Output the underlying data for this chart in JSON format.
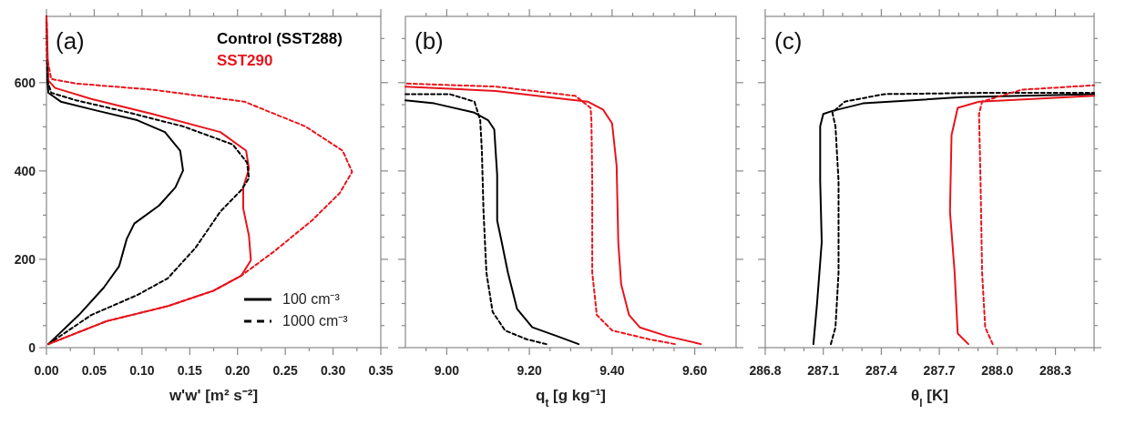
{
  "chart_data": [
    {
      "type": "line",
      "title": "(a)",
      "xlabel": "w'w' [m² s⁻²]",
      "xlim": [
        0,
        0.35
      ],
      "ylim": [
        0,
        750
      ],
      "xticks": [
        {
          "value": 0,
          "label": "0.00"
        },
        {
          "value": 0.025,
          "label": null
        },
        {
          "value": 0.05,
          "label": "0.05"
        },
        {
          "value": 0.075,
          "label": null
        },
        {
          "value": 0.1,
          "label": "0.10"
        },
        {
          "value": 0.125,
          "label": null
        },
        {
          "value": 0.15,
          "label": "0.15"
        },
        {
          "value": 0.175,
          "label": null
        },
        {
          "value": 0.2,
          "label": "0.20"
        },
        {
          "value": 0.225,
          "label": null
        },
        {
          "value": 0.25,
          "label": "0.25"
        },
        {
          "value": 0.275,
          "label": null
        },
        {
          "value": 0.3,
          "label": "0.30"
        },
        {
          "value": 0.325,
          "label": null
        },
        {
          "value": 0.35,
          "label": "0.35"
        }
      ],
      "yticks": [
        0,
        {
          "value": 50,
          "label": null
        },
        {
          "value": 100,
          "label": null
        },
        {
          "value": 150,
          "label": null
        },
        200,
        {
          "value": 250,
          "label": null
        },
        {
          "value": 300,
          "label": null
        },
        {
          "value": 350,
          "label": null
        },
        400,
        {
          "value": 450,
          "label": null
        },
        {
          "value": 500,
          "label": null
        },
        {
          "value": 550,
          "label": null
        },
        600,
        {
          "value": 650,
          "label": null
        },
        {
          "value": 700,
          "label": null
        }
      ],
      "legend": "top right",
      "annotations": [
        "100 cm⁻³",
        "1000 cm⁻³"
      ],
      "series": [
        {
          "name": "Control (SST288)",
          "color": "#000000",
          "line_style": "solid",
          "x": [
            0.002,
            0.034,
            0.06,
            0.076,
            0.084,
            0.092,
            0.118,
            0.135,
            0.143,
            0.14,
            0.124,
            0.095,
            0.054,
            0.015,
            0.002,
            0.001,
            0.001
          ],
          "values": [
            8,
            74,
            136,
            184,
            246,
            281,
            322,
            363,
            401,
            446,
            488,
            515,
            536,
            557,
            577,
            605,
            653
          ]
        },
        {
          "name": "SST290",
          "color": "#e8141c",
          "line_style": "solid",
          "x": [
            0.002,
            0.063,
            0.127,
            0.175,
            0.204,
            0.214,
            0.212,
            0.206,
            0.206,
            0.212,
            0.209,
            0.182,
            0.111,
            0.047,
            0.009,
            0.002,
            0
          ],
          "values": [
            8,
            60,
            94,
            129,
            163,
            198,
            253,
            315,
            363,
            405,
            446,
            488,
            529,
            563,
            588,
            605,
            750
          ]
        },
        {
          "color": "#000000",
          "line_style": "dashed",
          "x": [
            0.002,
            0.047,
            0.095,
            0.127,
            0.156,
            0.182,
            0.204,
            0.212,
            0.21,
            0.195,
            0.143,
            0.079,
            0.031,
            0.005,
            0.001,
            0
          ],
          "values": [
            8,
            74,
            119,
            157,
            226,
            308,
            357,
            384,
            419,
            460,
            501,
            536,
            560,
            577,
            605,
            750
          ]
        },
        {
          "color": "#e8141c",
          "line_style": "dashed",
          "x": [
            0.002,
            0.063,
            0.127,
            0.175,
            0.204,
            0.239,
            0.278,
            0.307,
            0.32,
            0.31,
            0.271,
            0.207,
            0.111,
            0.031,
            0.005,
            0.001,
            0
          ],
          "values": [
            8,
            60,
            94,
            129,
            163,
            219,
            288,
            350,
            398,
            446,
            501,
            557,
            584,
            598,
            608,
            653,
            750
          ]
        }
      ]
    },
    {
      "type": "line",
      "title": "(b)",
      "xlabel": "q$_{t}$ [g kg⁻¹]",
      "xlim": [
        8.9,
        9.7
      ],
      "ylim": [
        0,
        750
      ],
      "tick_labels": "x",
      "xticks": [
        {
          "value": 8.95,
          "label": null
        },
        {
          "value": 9.0,
          "label": "9.00"
        },
        {
          "value": 9.05,
          "label": null
        },
        {
          "value": 9.1,
          "label": null
        },
        {
          "value": 9.15,
          "label": null
        },
        {
          "value": 9.2,
          "label": "9.20"
        },
        {
          "value": 9.25,
          "label": null
        },
        {
          "value": 9.3,
          "label": null
        },
        {
          "value": 9.35,
          "label": null
        },
        {
          "value": 9.4,
          "label": "9.40"
        },
        {
          "value": 9.45,
          "label": null
        },
        {
          "value": 9.5,
          "label": null
        },
        {
          "value": 9.55,
          "label": null
        },
        {
          "value": 9.6,
          "label": "9.60"
        },
        {
          "value": 9.65,
          "label": null
        }
      ],
      "yticks": [
        0,
        {
          "value": 50,
          "label": null
        },
        {
          "value": 100,
          "label": null
        },
        {
          "value": 150,
          "label": null
        },
        200,
        {
          "value": 250,
          "label": null
        },
        {
          "value": 300,
          "label": null
        },
        {
          "value": 350,
          "label": null
        },
        400,
        {
          "value": 450,
          "label": null
        },
        {
          "value": 500,
          "label": null
        },
        {
          "value": 550,
          "label": null
        },
        600,
        {
          "value": 650,
          "label": null
        },
        {
          "value": 700,
          "label": null
        }
      ],
      "series": [
        {
          "color": "#000000",
          "line_style": "solid",
          "x": [
            9.319,
            9.267,
            9.207,
            9.17,
            9.148,
            9.133,
            9.122,
            9.122,
            9.115,
            9.1,
            9.067,
            8.97,
            8.9
          ],
          "values": [
            8,
            26,
            46,
            88,
            170,
            239,
            288,
            391,
            494,
            515,
            532,
            553,
            560
          ]
        },
        {
          "color": "#e8141c",
          "line_style": "solid",
          "x": [
            9.615,
            9.533,
            9.467,
            9.441,
            9.422,
            9.415,
            9.411,
            9.4,
            9.378,
            9.341,
            9.119,
            8.9
          ],
          "values": [
            8,
            26,
            46,
            74,
            143,
            239,
            412,
            508,
            539,
            557,
            581,
            591
          ]
        },
        {
          "color": "#000000",
          "line_style": "dashed",
          "x": [
            9.241,
            9.193,
            9.141,
            9.111,
            9.096,
            9.089,
            9.085,
            9.081,
            9.067,
            9.007,
            8.9
          ],
          "values": [
            8,
            19,
            39,
            81,
            170,
            308,
            446,
            515,
            557,
            574,
            574
          ]
        },
        {
          "color": "#e8141c",
          "line_style": "dashed",
          "x": [
            9.552,
            9.489,
            9.4,
            9.363,
            9.352,
            9.352,
            9.35,
            9.348,
            9.311,
            9.119,
            8.9
          ],
          "values": [
            8,
            19,
            39,
            74,
            170,
            377,
            515,
            543,
            570,
            591,
            598
          ]
        }
      ]
    },
    {
      "type": "line",
      "title": "(c)",
      "xlabel": "θ$_{l}$ [K]",
      "xlim": [
        286.8,
        288.5
      ],
      "ylim": [
        0,
        750
      ],
      "tick_labels": "x",
      "xticks": [
        286.8,
        {
          "value": 286.9,
          "label": null
        },
        {
          "value": 287.0,
          "label": null
        },
        287.1,
        {
          "value": 287.2,
          "label": null
        },
        {
          "value": 287.3,
          "label": null
        },
        287.4,
        {
          "value": 287.5,
          "label": null
        },
        {
          "value": 287.6,
          "label": null
        },
        287.7,
        {
          "value": 287.8,
          "label": null
        },
        {
          "value": 287.9,
          "label": null
        },
        {
          "value": 288.0,
          "label": "288.0"
        },
        {
          "value": 288.1,
          "label": null
        },
        {
          "value": 288.2,
          "label": null
        },
        288.3,
        {
          "value": 288.4,
          "label": null
        },
        {
          "value": 288.5,
          "label": null
        }
      ],
      "yticks": [
        0,
        {
          "value": 50,
          "label": null
        },
        {
          "value": 100,
          "label": null
        },
        {
          "value": 150,
          "label": null
        },
        200,
        {
          "value": 250,
          "label": null
        },
        {
          "value": 300,
          "label": null
        },
        {
          "value": 350,
          "label": null
        },
        400,
        {
          "value": 450,
          "label": null
        },
        {
          "value": 500,
          "label": null
        },
        {
          "value": 550,
          "label": null
        },
        600,
        {
          "value": 650,
          "label": null
        },
        {
          "value": 700,
          "label": null
        }
      ],
      "series": [
        {
          "color": "#000000",
          "line_style": "solid",
          "x": [
            287.049,
            287.068,
            287.092,
            287.084,
            287.084,
            287.1,
            287.147,
            287.305,
            287.811,
            288.5
          ],
          "values": [
            8,
            101,
            239,
            377,
            501,
            529,
            536,
            553,
            567,
            574
          ]
        },
        {
          "color": "#e8141c",
          "line_style": "solid",
          "x": [
            287.85,
            287.795,
            287.779,
            287.755,
            287.763,
            287.795,
            287.905,
            288.5
          ],
          "values": [
            8,
            32,
            170,
            308,
            481,
            543,
            557,
            570
          ]
        },
        {
          "color": "#000000",
          "line_style": "dashed",
          "x": [
            287.139,
            287.163,
            287.179,
            287.179,
            287.163,
            287.147,
            287.211,
            287.416,
            287.968,
            288.5
          ],
          "values": [
            8,
            46,
            170,
            377,
            501,
            532,
            557,
            574,
            577,
            577
          ]
        },
        {
          "color": "#e8141c",
          "line_style": "dashed",
          "x": [
            287.976,
            287.937,
            287.921,
            287.913,
            287.905,
            287.921,
            288.126,
            288.5
          ],
          "values": [
            8,
            46,
            170,
            377,
            529,
            557,
            584,
            594
          ]
        }
      ]
    }
  ]
}
